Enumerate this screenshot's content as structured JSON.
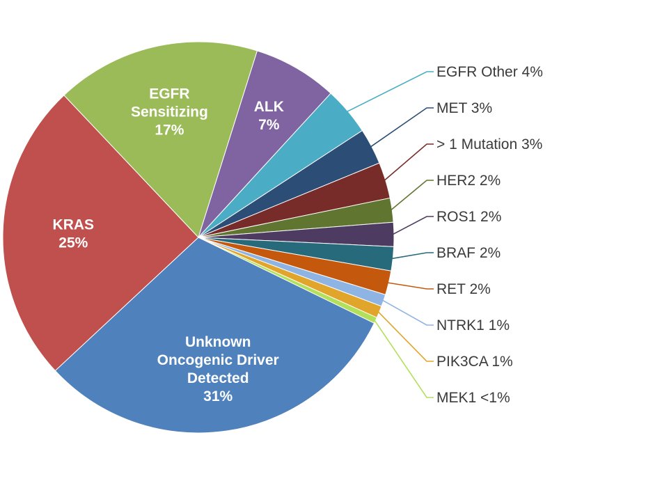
{
  "chart_data": {
    "type": "pie",
    "title": "",
    "slices": [
      {
        "label": "Unknown Oncogenic Driver Detected",
        "display": [
          "Unknown",
          "Oncogenic Driver",
          "Detected",
          "31%"
        ],
        "value": 31,
        "color": "#4f81bd",
        "label_position": "inside"
      },
      {
        "label": "KRAS",
        "display": [
          "KRAS",
          "25%"
        ],
        "value": 25,
        "color": "#c0504d",
        "label_position": "inside"
      },
      {
        "label": "EGFR Sensitizing",
        "display": [
          "EGFR",
          "Sensitizing",
          "17%"
        ],
        "value": 17,
        "color": "#9bbb59",
        "label_position": "inside"
      },
      {
        "label": "ALK",
        "display": [
          "ALK",
          "7%"
        ],
        "value": 7,
        "color": "#8064a2",
        "label_position": "inside"
      },
      {
        "label": "EGFR Other",
        "display": [
          "EGFR Other 4%"
        ],
        "value": 4,
        "color": "#4bacc6",
        "label_position": "outside"
      },
      {
        "label": "MET",
        "display": [
          "MET 3%"
        ],
        "value": 3,
        "color": "#2c4d75",
        "label_position": "outside"
      },
      {
        "label": "> 1 Mutation",
        "display": [
          "> 1 Mutation 3%"
        ],
        "value": 3,
        "color": "#772c2a",
        "label_position": "outside"
      },
      {
        "label": "HER2",
        "display": [
          "HER2 2%"
        ],
        "value": 2,
        "color": "#5f7530",
        "label_position": "outside"
      },
      {
        "label": "ROS1",
        "display": [
          "ROS1 2%"
        ],
        "value": 2,
        "color": "#4d3b62",
        "label_position": "outside"
      },
      {
        "label": "BRAF",
        "display": [
          "BRAF 2%"
        ],
        "value": 2,
        "color": "#276a7c",
        "label_position": "outside"
      },
      {
        "label": "RET",
        "display": [
          "RET 2%"
        ],
        "value": 2,
        "color": "#c4590d",
        "label_position": "outside"
      },
      {
        "label": "NTRK1",
        "display": [
          "NTRK1 1%"
        ],
        "value": 1,
        "color": "#8eb4e3",
        "label_position": "outside"
      },
      {
        "label": "PIK3CA",
        "display": [
          "PIK3CA 1%"
        ],
        "value": 1,
        "color": "#e0a52a",
        "label_position": "outside"
      },
      {
        "label": "MEK1",
        "display": [
          "MEK1 <1%"
        ],
        "value": 0.5,
        "color": "#b3e05a",
        "label_position": "outside"
      }
    ]
  }
}
